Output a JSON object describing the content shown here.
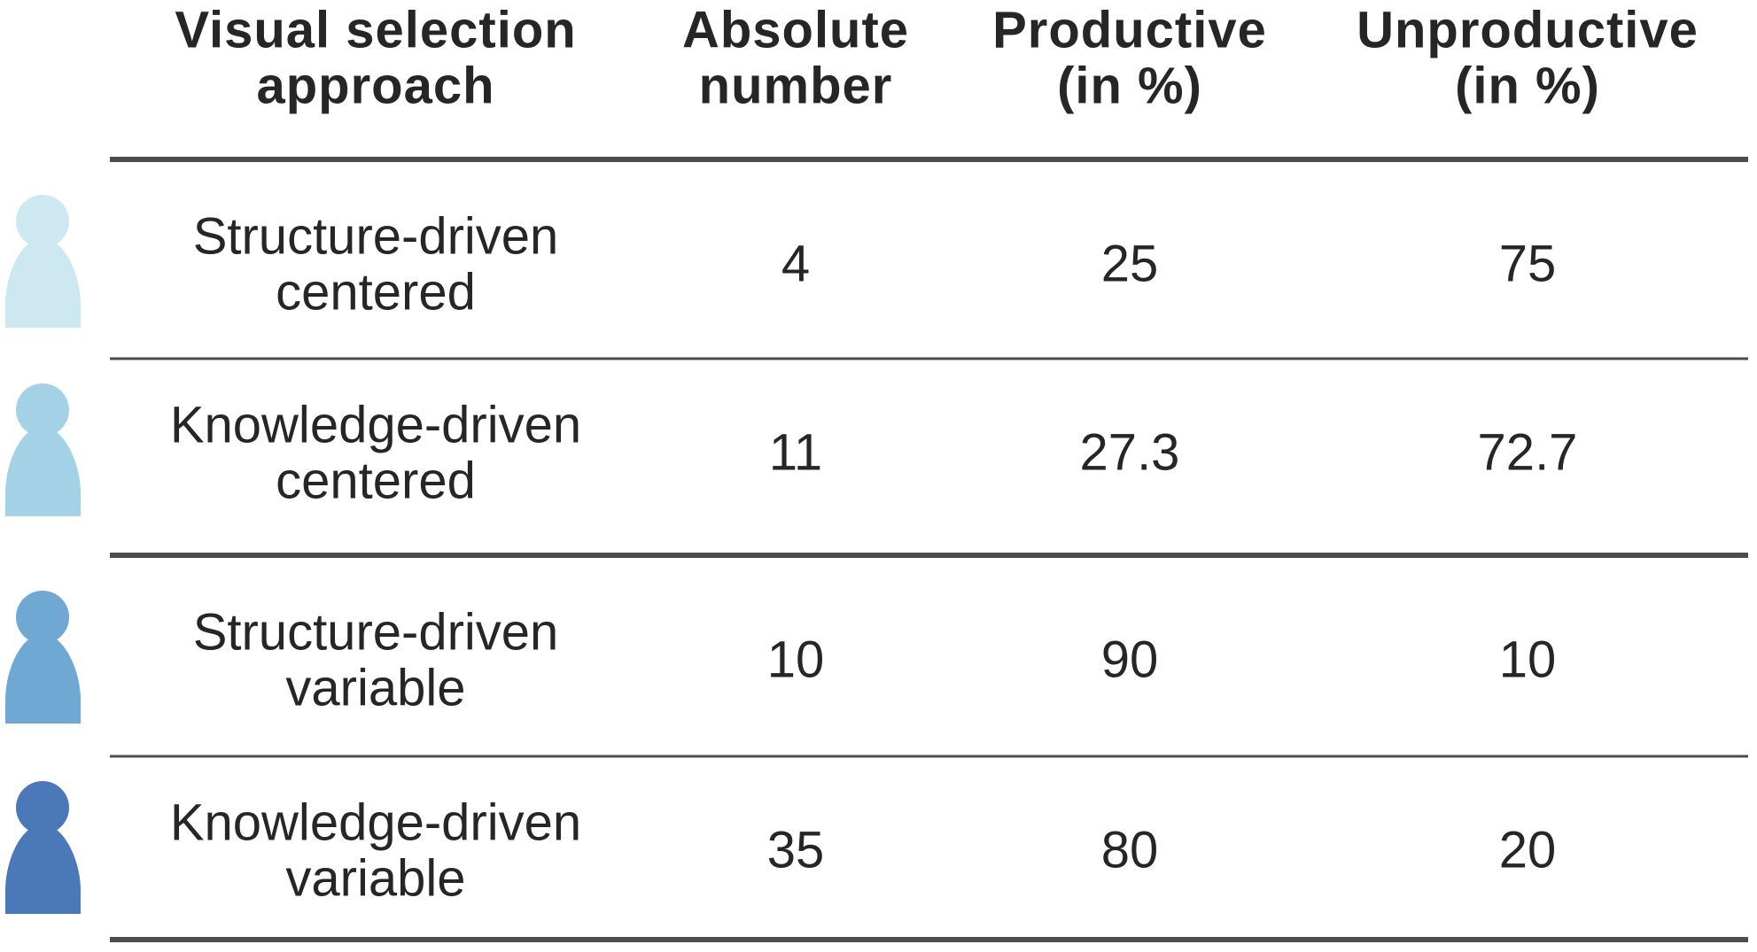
{
  "table": {
    "header": [
      "Visual selection\napproach",
      "Absolute\nnumber",
      "Productive\n(in %)",
      "Unproductive\n(in %)"
    ],
    "rows": [
      [
        "Structure-driven\ncentered",
        4,
        25,
        75
      ],
      [
        "Knowledge-driven\ncentered",
        11,
        27.3,
        72.7
      ],
      [
        "Structure-driven\nvariable",
        10,
        90,
        10
      ],
      [
        "Knowledge-driven\nvariable",
        35,
        80,
        20
      ]
    ]
  }
}
